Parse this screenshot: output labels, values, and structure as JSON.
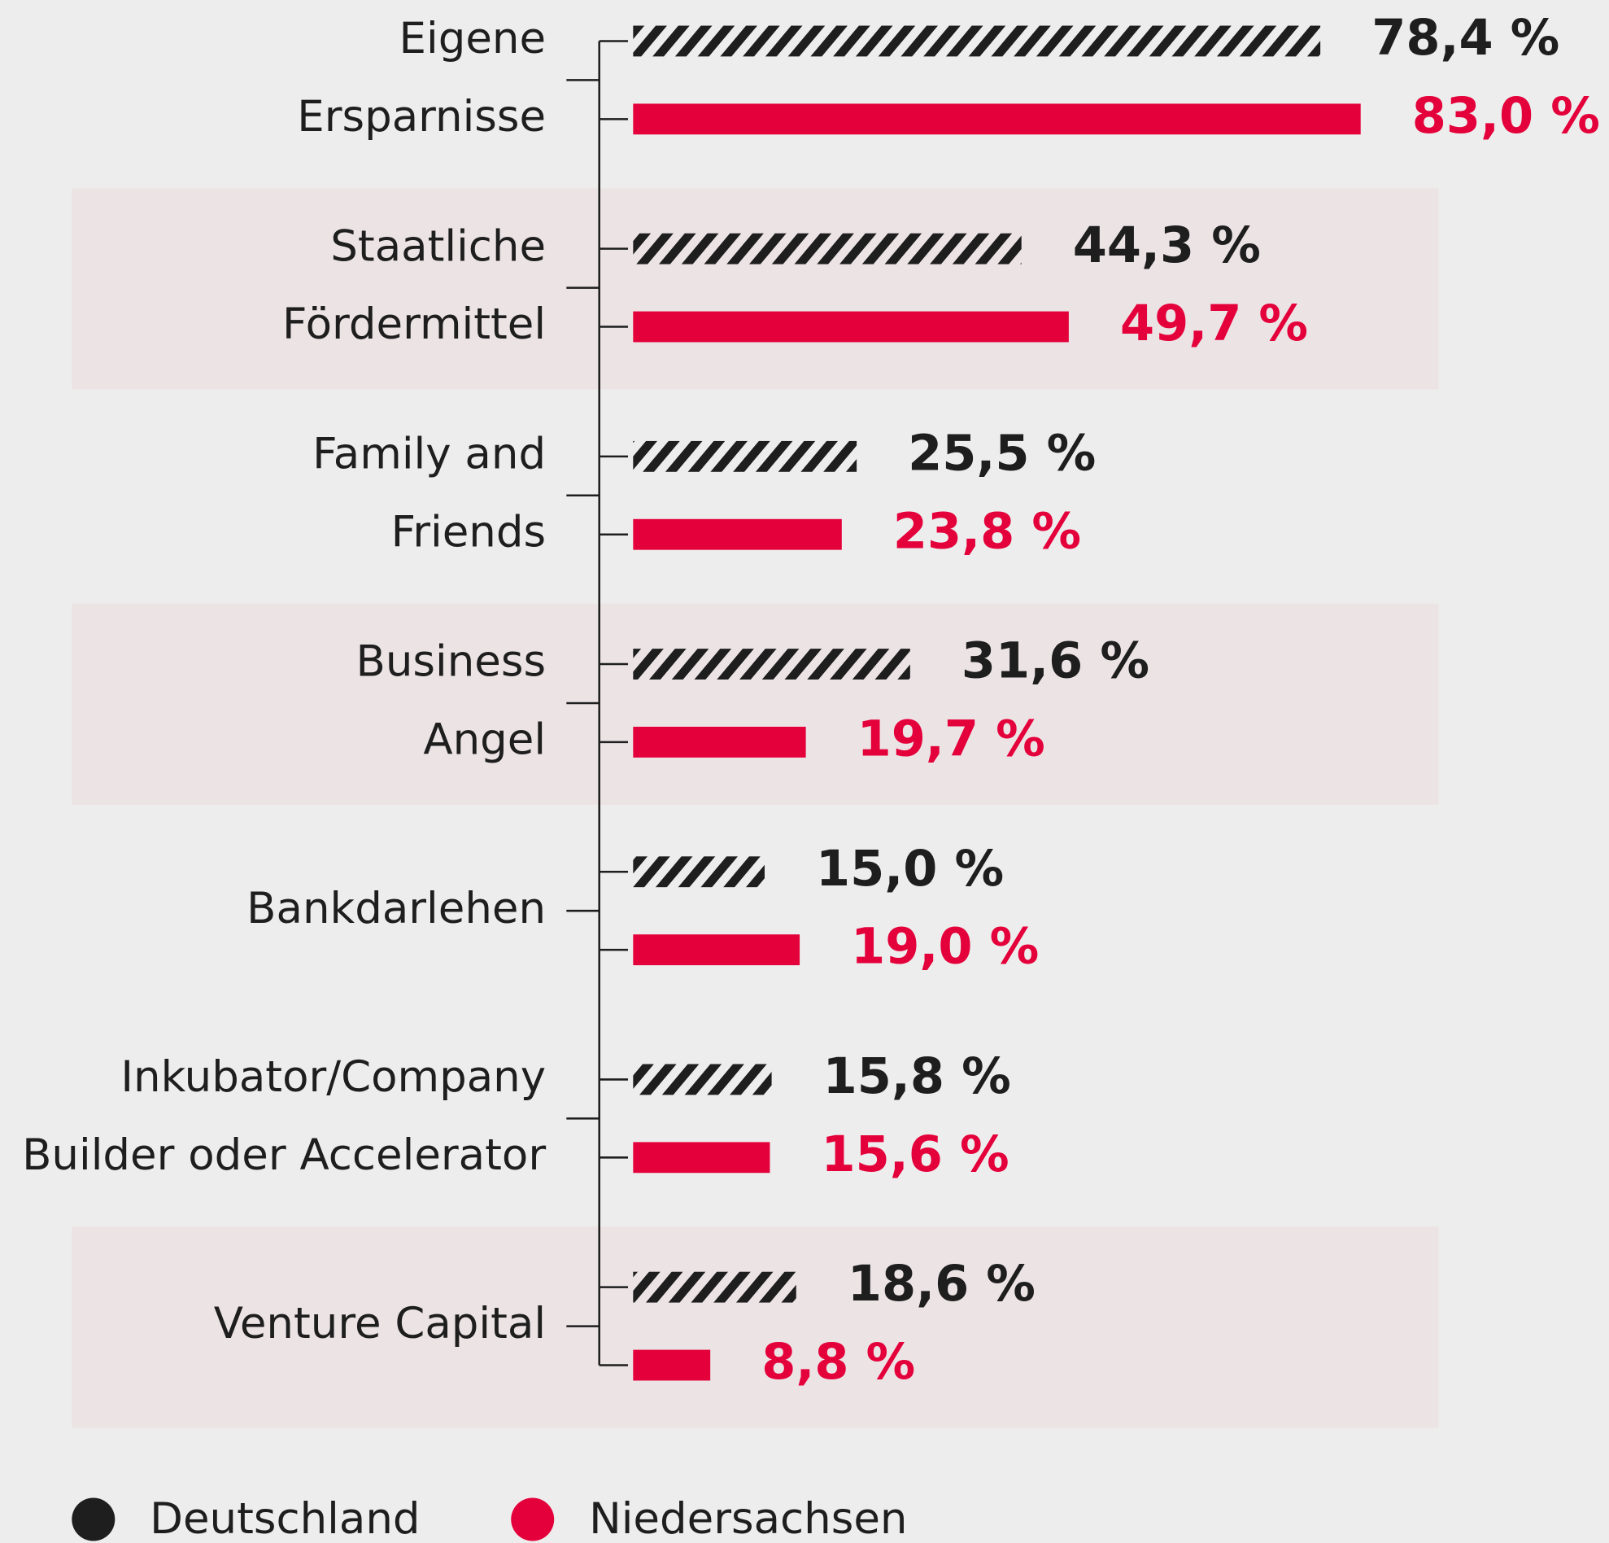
{
  "chart_data": {
    "type": "bar",
    "orientation": "horizontal",
    "categories": [
      [
        "Eigene",
        "Ersparnisse"
      ],
      [
        "Staatliche",
        "Fördermittel"
      ],
      [
        "Family and",
        "Friends"
      ],
      [
        "Business",
        "Angel"
      ],
      [
        "Bankdarlehen"
      ],
      [
        "Inkubator/Company",
        "Builder oder Accelerator"
      ],
      [
        "Venture Capital"
      ]
    ],
    "series": [
      {
        "name": "Deutschland",
        "color": "#1e1e1e",
        "pattern": "hatch",
        "values": [
          78.4,
          44.3,
          25.5,
          31.6,
          15.0,
          15.8,
          18.6
        ],
        "value_labels": [
          "78,4 %",
          "44,3 %",
          "25,5 %",
          "31,6 %",
          "15,0 %",
          "15,8 %",
          "18,6 %"
        ]
      },
      {
        "name": "Niedersachsen",
        "color": "#e4003a",
        "values": [
          83.0,
          49.7,
          23.8,
          19.7,
          19.0,
          15.6,
          8.8
        ],
        "value_labels": [
          "83,0 %",
          "49,7 %",
          "23,8 %",
          "19,7 %",
          "19,0 %",
          "15,6 %",
          "8,8 %"
        ]
      }
    ],
    "legend": "bottom-left"
  }
}
